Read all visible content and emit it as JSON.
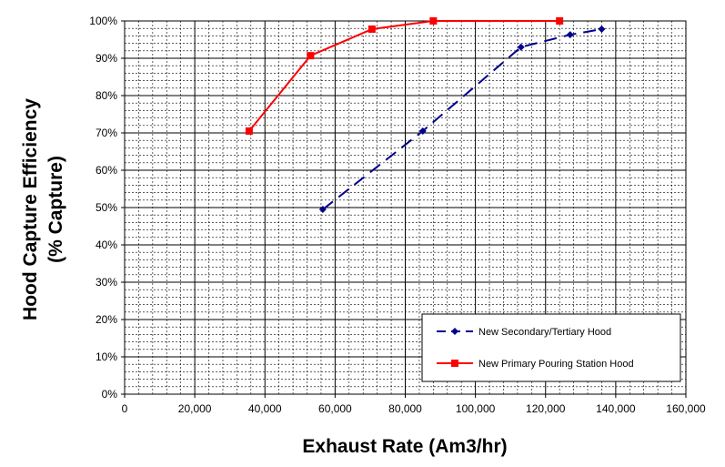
{
  "chart_data": {
    "type": "line",
    "xlabel": "Exhaust Rate (Am3/hr)",
    "ylabel_lines": [
      "Hood Capture Efficiency",
      "(% Capture)"
    ],
    "xlim": [
      0,
      160000
    ],
    "ylim": [
      0,
      100
    ],
    "x_ticks": [
      0,
      20000,
      40000,
      60000,
      80000,
      100000,
      120000,
      140000,
      160000
    ],
    "x_tick_labels": [
      "0",
      "20,000",
      "40,000",
      "60,000",
      "80,000",
      "100,000",
      "120,000",
      "140,000",
      "160,000"
    ],
    "y_ticks": [
      0,
      10,
      20,
      30,
      40,
      50,
      60,
      70,
      80,
      90,
      100
    ],
    "y_tick_labels": [
      "0%",
      "10%",
      "20%",
      "30%",
      "40%",
      "50%",
      "60%",
      "70%",
      "80%",
      "90%",
      "100%"
    ],
    "grid": "major solid, minor dashed",
    "legend_position": "bottom-right",
    "series": [
      {
        "name": "New Secondary/Tertiary Hood",
        "color": "#00008B",
        "line_style": "dashed",
        "marker": "diamond",
        "points": [
          [
            56500,
            49.5
          ],
          [
            85000,
            70.5
          ],
          [
            113000,
            93
          ],
          [
            127000,
            96.3
          ],
          [
            136000,
            97.8
          ]
        ]
      },
      {
        "name": "New Primary Pouring Station Hood",
        "color": "#FF0000",
        "line_style": "solid",
        "marker": "square",
        "points": [
          [
            35500,
            70.5
          ],
          [
            53000,
            90.7
          ],
          [
            70500,
            97.8
          ],
          [
            88000,
            100
          ],
          [
            124000,
            100
          ]
        ]
      }
    ]
  }
}
